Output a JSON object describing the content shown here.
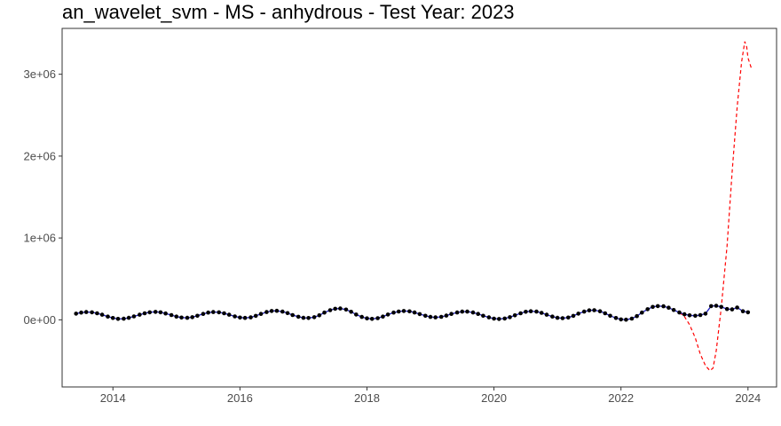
{
  "chart_data": {
    "type": "line",
    "title": "an_wavelet_svm - MS - anhydrous - Test Year: 2023",
    "xlabel": "",
    "ylabel": "",
    "xlim": [
      2013.2,
      2024.45
    ],
    "ylim": [
      -820000,
      3560000
    ],
    "x_ticks": [
      2014,
      2016,
      2018,
      2020,
      2022,
      2024
    ],
    "x_tick_labels": [
      "2014",
      "2016",
      "2018",
      "2020",
      "2022",
      "2024"
    ],
    "y_ticks": [
      0,
      1000000,
      2000000,
      3000000
    ],
    "y_tick_labels": [
      "0e+00",
      "1e+06",
      "2e+06",
      "3e+06"
    ],
    "grid": false,
    "legend": "none",
    "colors": {
      "actual_points": "#000000",
      "fitted_line": "#1f1fbf",
      "forecast_line": "#ff0000",
      "frame": "#333333"
    },
    "series": [
      {
        "line_style": "solid",
        "points": [
          [
            2013.42,
            75000
          ],
          [
            2013.5,
            88000
          ],
          [
            2013.58,
            95000
          ],
          [
            2013.67,
            92000
          ],
          [
            2013.75,
            80000
          ],
          [
            2013.83,
            62000
          ],
          [
            2013.92,
            40000
          ],
          [
            2014.0,
            22000
          ],
          [
            2014.08,
            12000
          ],
          [
            2014.17,
            14000
          ],
          [
            2014.25,
            25000
          ],
          [
            2014.33,
            42000
          ],
          [
            2014.42,
            62000
          ],
          [
            2014.5,
            80000
          ],
          [
            2014.58,
            92000
          ],
          [
            2014.67,
            97000
          ],
          [
            2014.75,
            92000
          ],
          [
            2014.83,
            78000
          ],
          [
            2014.92,
            58000
          ],
          [
            2015.0,
            40000
          ],
          [
            2015.08,
            28000
          ],
          [
            2015.17,
            25000
          ],
          [
            2015.25,
            32000
          ],
          [
            2015.33,
            50000
          ],
          [
            2015.42,
            72000
          ],
          [
            2015.5,
            88000
          ],
          [
            2015.58,
            95000
          ],
          [
            2015.67,
            92000
          ],
          [
            2015.75,
            80000
          ],
          [
            2015.83,
            62000
          ],
          [
            2015.92,
            42000
          ],
          [
            2016.0,
            28000
          ],
          [
            2016.08,
            24000
          ],
          [
            2016.17,
            30000
          ],
          [
            2016.25,
            48000
          ],
          [
            2016.33,
            72000
          ],
          [
            2016.42,
            95000
          ],
          [
            2016.5,
            108000
          ],
          [
            2016.58,
            110000
          ],
          [
            2016.67,
            100000
          ],
          [
            2016.75,
            82000
          ],
          [
            2016.83,
            58000
          ],
          [
            2016.92,
            38000
          ],
          [
            2017.0,
            25000
          ],
          [
            2017.08,
            22000
          ],
          [
            2017.17,
            32000
          ],
          [
            2017.25,
            55000
          ],
          [
            2017.33,
            88000
          ],
          [
            2017.42,
            118000
          ],
          [
            2017.5,
            135000
          ],
          [
            2017.58,
            138000
          ],
          [
            2017.67,
            125000
          ],
          [
            2017.75,
            98000
          ],
          [
            2017.83,
            65000
          ],
          [
            2017.92,
            35000
          ],
          [
            2018.0,
            18000
          ],
          [
            2018.08,
            12000
          ],
          [
            2018.17,
            20000
          ],
          [
            2018.25,
            40000
          ],
          [
            2018.33,
            65000
          ],
          [
            2018.42,
            88000
          ],
          [
            2018.5,
            102000
          ],
          [
            2018.58,
            108000
          ],
          [
            2018.67,
            104000
          ],
          [
            2018.75,
            90000
          ],
          [
            2018.83,
            70000
          ],
          [
            2018.92,
            50000
          ],
          [
            2019.0,
            35000
          ],
          [
            2019.08,
            30000
          ],
          [
            2019.17,
            36000
          ],
          [
            2019.25,
            52000
          ],
          [
            2019.33,
            72000
          ],
          [
            2019.42,
            90000
          ],
          [
            2019.5,
            100000
          ],
          [
            2019.58,
            100000
          ],
          [
            2019.67,
            90000
          ],
          [
            2019.75,
            72000
          ],
          [
            2019.83,
            50000
          ],
          [
            2019.92,
            30000
          ],
          [
            2020.0,
            15000
          ],
          [
            2020.08,
            10000
          ],
          [
            2020.17,
            16000
          ],
          [
            2020.25,
            32000
          ],
          [
            2020.33,
            55000
          ],
          [
            2020.42,
            80000
          ],
          [
            2020.5,
            98000
          ],
          [
            2020.58,
            105000
          ],
          [
            2020.67,
            100000
          ],
          [
            2020.75,
            85000
          ],
          [
            2020.83,
            62000
          ],
          [
            2020.92,
            40000
          ],
          [
            2021.0,
            25000
          ],
          [
            2021.08,
            20000
          ],
          [
            2021.17,
            28000
          ],
          [
            2021.25,
            48000
          ],
          [
            2021.33,
            75000
          ],
          [
            2021.42,
            100000
          ],
          [
            2021.5,
            116000
          ],
          [
            2021.58,
            118000
          ],
          [
            2021.67,
            105000
          ],
          [
            2021.75,
            80000
          ],
          [
            2021.83,
            50000
          ],
          [
            2021.92,
            22000
          ],
          [
            2022.0,
            5000
          ],
          [
            2022.08,
            2000
          ],
          [
            2022.17,
            15000
          ],
          [
            2022.25,
            45000
          ],
          [
            2022.33,
            88000
          ],
          [
            2022.42,
            130000
          ],
          [
            2022.5,
            158000
          ],
          [
            2022.58,
            168000
          ],
          [
            2022.67,
            165000
          ],
          [
            2022.75,
            148000
          ],
          [
            2022.83,
            120000
          ],
          [
            2022.92,
            90000
          ],
          [
            2023.0,
            68000
          ],
          [
            2023.08,
            55000
          ],
          [
            2023.17,
            50000
          ],
          [
            2023.25,
            58000
          ],
          [
            2023.33,
            75000
          ],
          [
            2023.42,
            168000
          ],
          [
            2023.5,
            172000
          ],
          [
            2023.58,
            158000
          ],
          [
            2023.67,
            132000
          ],
          [
            2023.75,
            128000
          ],
          [
            2023.83,
            150000
          ],
          [
            2023.92,
            105000
          ],
          [
            2024.0,
            92000
          ]
        ]
      },
      {
        "line_style": "dashed",
        "points": [
          [
            2022.92,
            90000
          ],
          [
            2023.0,
            40000
          ],
          [
            2023.08,
            -60000
          ],
          [
            2023.17,
            -220000
          ],
          [
            2023.25,
            -420000
          ],
          [
            2023.33,
            -560000
          ],
          [
            2023.4,
            -620000
          ],
          [
            2023.45,
            -590000
          ],
          [
            2023.5,
            -380000
          ],
          [
            2023.58,
            150000
          ],
          [
            2023.67,
            900000
          ],
          [
            2023.75,
            1800000
          ],
          [
            2023.83,
            2600000
          ],
          [
            2023.9,
            3150000
          ],
          [
            2023.95,
            3400000
          ],
          [
            2023.98,
            3330000
          ],
          [
            2024.0,
            3200000
          ],
          [
            2024.05,
            3080000
          ]
        ]
      }
    ]
  }
}
